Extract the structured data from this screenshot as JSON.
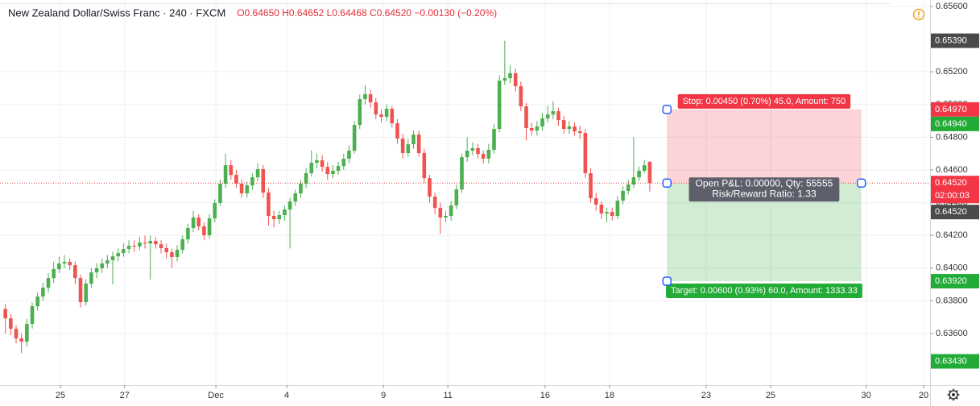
{
  "chart_data": {
    "type": "candlestick",
    "title": "New Zealand Dollar/Swiss Franc · 240 · FXCM",
    "ohlc_text": "O0.64650 H0.64652 L0.64468 C0.64520 −0.00130 (−0.20%)",
    "up_color": "#4caf50",
    "down_color": "#ef5350",
    "grid": true,
    "xlim": [
      -1,
      172.2
    ],
    "xticks": [
      {
        "value": 10.25,
        "label": "25"
      },
      {
        "value": 22.2,
        "label": "27"
      },
      {
        "value": 39.2,
        "label": "Dec"
      },
      {
        "value": 52.4,
        "label": "4"
      },
      {
        "value": 70.4,
        "label": "9"
      },
      {
        "value": 82.4,
        "label": "11"
      },
      {
        "value": 100.5,
        "label": "16"
      },
      {
        "value": 112.5,
        "label": "18"
      },
      {
        "value": 130.5,
        "label": "23"
      },
      {
        "value": 142.5,
        "label": "25"
      },
      {
        "value": 160.3,
        "label": "30"
      },
      {
        "value": 171,
        "label": "20"
      }
    ],
    "ylim": [
      0.63285,
      0.65639
    ],
    "yticks": [
      {
        "value": 0.656,
        "label": "0.65600"
      },
      {
        "value": 0.652,
        "label": "0.65200"
      },
      {
        "value": 0.65,
        "label": "0.65000"
      },
      {
        "value": 0.648,
        "label": "0.64800"
      },
      {
        "value": 0.646,
        "label": "0.64600"
      },
      {
        "value": 0.644,
        "label": "0.64400"
      },
      {
        "value": 0.642,
        "label": "0.64200"
      },
      {
        "value": 0.64,
        "label": "0.64000"
      },
      {
        "value": 0.638,
        "label": "0.63800"
      },
      {
        "value": 0.636,
        "label": "0.63600"
      }
    ],
    "ohlc": {
      "open": [
        0.6375,
        0.63693,
        0.63629,
        0.6357,
        0.6355,
        0.63659,
        0.63767,
        0.63826,
        0.6388,
        0.63939,
        0.63994,
        0.64028,
        0.64038,
        0.64018,
        0.63939,
        0.63792,
        0.63905,
        0.63974,
        0.63999,
        0.64028,
        0.64048,
        0.64072,
        0.64092,
        0.64117,
        0.64137,
        0.64132,
        0.64156,
        0.64151,
        0.64166,
        0.64146,
        0.64122,
        0.64097,
        0.64068,
        0.64112,
        0.64176,
        0.64245,
        0.64309,
        0.64255,
        0.64201,
        0.64304,
        0.64398,
        0.64516,
        0.64629,
        0.6457,
        0.64516,
        0.64457,
        0.64506,
        0.64555,
        0.64605,
        0.64462,
        0.64319,
        0.64299,
        0.64324,
        0.64358,
        0.64407,
        0.64457,
        0.64516,
        0.6458,
        0.64644,
        0.64659,
        0.64619,
        0.64575,
        0.64595,
        0.64624,
        0.64669,
        0.64718,
        0.64875,
        0.65033,
        0.65063,
        0.65013,
        0.64939,
        0.64925,
        0.64974,
        0.64885,
        0.64792,
        0.64703,
        0.64757,
        0.64816,
        0.64703,
        0.6455,
        0.64437,
        0.64368,
        0.64309,
        0.64319,
        0.64383,
        0.64481,
        0.64678,
        0.64718,
        0.64733,
        0.64698,
        0.64669,
        0.64723,
        0.64851,
        0.65146,
        0.65161,
        0.65191,
        0.65112,
        0.64989,
        0.64856,
        0.64841,
        0.64866,
        0.64915,
        0.64939,
        0.64959,
        0.64905,
        0.64851,
        0.64866,
        0.64836,
        0.64826,
        0.6458,
        0.64427,
        0.64388,
        0.64334,
        0.64343,
        0.64319,
        0.64412,
        0.64472,
        0.64511,
        0.64555,
        0.64595,
        0.6465
      ],
      "high": [
        0.6378,
        0.6372,
        0.6365,
        0.636,
        0.6369,
        0.6379,
        0.6385,
        0.6391,
        0.6397,
        0.6404,
        0.6407,
        0.6408,
        0.6406,
        0.6404,
        0.6396,
        0.6393,
        0.64,
        0.6403,
        0.6406,
        0.6408,
        0.641,
        0.6412,
        0.6415,
        0.6417,
        0.6417,
        0.6419,
        0.642,
        0.642,
        0.6419,
        0.6417,
        0.6415,
        0.6412,
        0.6414,
        0.642,
        0.6427,
        0.6435,
        0.6433,
        0.6428,
        0.6433,
        0.6442,
        0.6454,
        0.647,
        0.6466,
        0.646,
        0.6454,
        0.6453,
        0.6458,
        0.6464,
        0.6463,
        0.6449,
        0.6435,
        0.6435,
        0.6438,
        0.6443,
        0.6448,
        0.6454,
        0.6461,
        0.6472,
        0.647,
        0.6469,
        0.6465,
        0.6463,
        0.6465,
        0.647,
        0.6475,
        0.649,
        0.6506,
        0.6512,
        0.6509,
        0.6504,
        0.6497,
        0.65,
        0.6499,
        0.6491,
        0.6482,
        0.6479,
        0.6484,
        0.6484,
        0.6473,
        0.6457,
        0.6446,
        0.644,
        0.6435,
        0.6441,
        0.6451,
        0.647,
        0.648,
        0.6477,
        0.6476,
        0.6472,
        0.6476,
        0.6488,
        0.6518,
        0.6539,
        0.6524,
        0.6522,
        0.6514,
        0.6501,
        0.6489,
        0.649,
        0.6495,
        0.6499,
        0.6502,
        0.6498,
        0.6493,
        0.649,
        0.6489,
        0.6487,
        0.6485,
        0.6461,
        0.6446,
        0.6441,
        0.6437,
        0.6437,
        0.6444,
        0.645,
        0.6454,
        0.648,
        0.6462,
        0.6466,
        0.64652
      ],
      "low": [
        0.636,
        0.6359,
        0.6354,
        0.6348,
        0.6352,
        0.6363,
        0.6374,
        0.638,
        0.6385,
        0.6391,
        0.6397,
        0.64,
        0.6399,
        0.639,
        0.6376,
        0.6377,
        0.6388,
        0.6394,
        0.6397,
        0.64,
        0.639,
        0.6404,
        0.6407,
        0.6409,
        0.641,
        0.6411,
        0.6412,
        0.6393,
        0.6412,
        0.6409,
        0.6406,
        0.64,
        0.6404,
        0.6409,
        0.6415,
        0.6422,
        0.6423,
        0.6417,
        0.6418,
        0.6428,
        0.6438,
        0.6449,
        0.6454,
        0.6449,
        0.6443,
        0.6443,
        0.6448,
        0.6453,
        0.6443,
        0.6426,
        0.6425,
        0.6427,
        0.6429,
        0.6412,
        0.6438,
        0.6443,
        0.6449,
        0.6456,
        0.6461,
        0.6459,
        0.6454,
        0.6455,
        0.6457,
        0.646,
        0.6464,
        0.647,
        0.6485,
        0.65,
        0.6498,
        0.6491,
        0.6489,
        0.649,
        0.6486,
        0.6476,
        0.6467,
        0.6468,
        0.6473,
        0.6468,
        0.6452,
        0.644,
        0.6433,
        0.6421,
        0.6428,
        0.6429,
        0.6436,
        0.6446,
        0.6465,
        0.6469,
        0.6467,
        0.6464,
        0.6464,
        0.647,
        0.6483,
        0.6512,
        0.6513,
        0.6508,
        0.6496,
        0.6478,
        0.6481,
        0.6481,
        0.6484,
        0.6489,
        0.6491,
        0.6487,
        0.6482,
        0.6482,
        0.6481,
        0.6479,
        0.6455,
        0.644,
        0.6435,
        0.643,
        0.6428,
        0.6429,
        0.643,
        0.6439,
        0.6445,
        0.6449,
        0.6453,
        0.6458,
        0.64468
      ],
      "close": [
        0.63693,
        0.63629,
        0.6357,
        0.6355,
        0.63659,
        0.63767,
        0.63826,
        0.6388,
        0.63939,
        0.63994,
        0.64028,
        0.64038,
        0.64018,
        0.63939,
        0.63792,
        0.63905,
        0.63974,
        0.63999,
        0.64028,
        0.64048,
        0.64072,
        0.64092,
        0.64117,
        0.64137,
        0.64132,
        0.64156,
        0.64151,
        0.64166,
        0.64146,
        0.64122,
        0.64097,
        0.64068,
        0.64112,
        0.64176,
        0.64245,
        0.64309,
        0.64255,
        0.64201,
        0.64304,
        0.64398,
        0.64516,
        0.64629,
        0.6457,
        0.64516,
        0.64457,
        0.64506,
        0.64555,
        0.64605,
        0.64462,
        0.64319,
        0.64299,
        0.64324,
        0.64358,
        0.64407,
        0.64457,
        0.64516,
        0.6458,
        0.64644,
        0.64659,
        0.64619,
        0.64575,
        0.64595,
        0.64624,
        0.64669,
        0.64718,
        0.64875,
        0.65033,
        0.65063,
        0.65013,
        0.64939,
        0.64925,
        0.64974,
        0.64885,
        0.64792,
        0.64703,
        0.64757,
        0.64816,
        0.64703,
        0.6455,
        0.64437,
        0.64368,
        0.64309,
        0.64319,
        0.64383,
        0.64481,
        0.64678,
        0.64718,
        0.64733,
        0.64698,
        0.64669,
        0.64723,
        0.64851,
        0.65146,
        0.65161,
        0.65191,
        0.65112,
        0.64989,
        0.64856,
        0.64841,
        0.64866,
        0.64915,
        0.64939,
        0.64959,
        0.64905,
        0.64851,
        0.64866,
        0.64836,
        0.64826,
        0.6458,
        0.64427,
        0.64388,
        0.64334,
        0.64343,
        0.64319,
        0.64412,
        0.64472,
        0.64511,
        0.64555,
        0.64595,
        0.64629,
        0.6452
      ]
    },
    "price_labels": [
      {
        "value": 0.6539,
        "label": "0.65390",
        "color": "#4a4a4a"
      },
      {
        "value": 0.6497,
        "label": "0.64970",
        "color": "#f23645"
      },
      {
        "value": 0.6494,
        "label": "0.64940",
        "color": "#22ab36"
      },
      {
        "value": 0.6392,
        "label": "0.63920",
        "color": "#22ab36"
      },
      {
        "value": 0.6343,
        "label": "0.63430",
        "color": "#22ab36"
      }
    ],
    "last_price": {
      "value": 0.6452,
      "label": "0.64520",
      "countdown": "02:00:03",
      "close_label": "0.64520",
      "color": "#f23645",
      "close_color": "#4a4a4a"
    },
    "position": {
      "x_range": [
        123.2,
        159.4
      ],
      "stop": 0.6497,
      "entry": 0.6452,
      "target": 0.6392,
      "stop_text": "Stop: 0.00450 (0.70%) 45.0, Amount: 750",
      "pnl_text": "Open P&L: 0.00000, Qty: 55555",
      "rr_text": "Risk/Reward Ratio: 1.33",
      "target_text": "Target: 0.00600 (0.93%) 60.0, Amount: 1333.33"
    }
  }
}
